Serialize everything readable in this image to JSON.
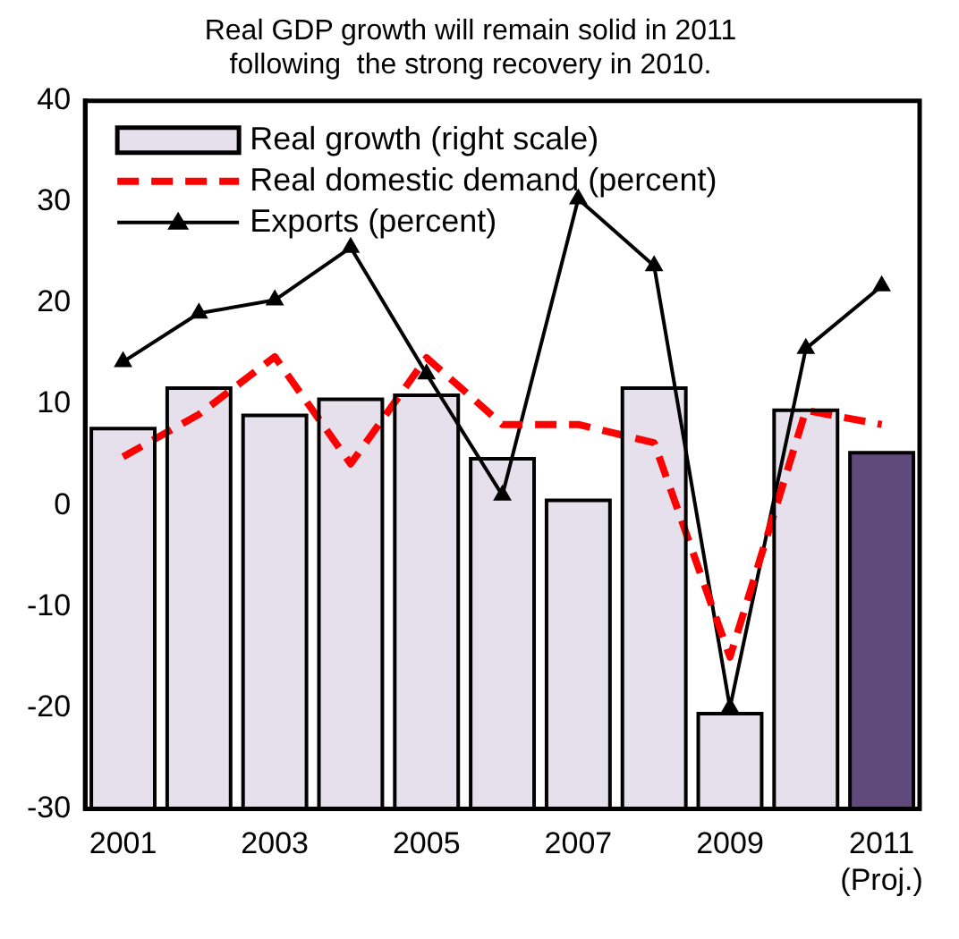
{
  "chart_data": {
    "type": "bar",
    "title": "Real GDP growth will remain solid in 2011\nfollowing  the strong recovery in 2010.",
    "categories": [
      "2001",
      null,
      "2003",
      null,
      "2005",
      null,
      "2007",
      null,
      "2009",
      null,
      "2011\n(Proj.)"
    ],
    "ylim": [
      -30,
      40
    ],
    "yticks": [
      -30,
      -20,
      -10,
      0,
      10,
      20,
      30,
      40
    ],
    "grid": false,
    "legend": "top left",
    "series": [
      {
        "name": "Real growth (right scale)",
        "colors": [
          "#e6e0ec",
          "#e6e0ec",
          "#e6e0ec",
          "#e6e0ec",
          "#e6e0ec",
          "#e6e0ec",
          "#e6e0ec",
          "#e6e0ec",
          "#e6e0ec",
          "#e6e0ec",
          "#604a7b"
        ],
        "base": [
          -30,
          -30,
          -30,
          -30,
          -30,
          -30,
          -30,
          -30,
          -30,
          -30,
          -30
        ],
        "values": [
          37.6,
          41.6,
          38.9,
          40.5,
          40.9,
          34.6,
          30.5,
          41.6,
          9.4,
          39.4,
          35.2
        ]
      },
      {
        "name": "Real domestic demand (percent)",
        "type": "line",
        "color": "#ff0000",
        "line_style": "dashed",
        "marker": "none",
        "values": [
          4.8,
          9,
          14.7,
          4.1,
          14.6,
          8,
          8,
          6.2,
          -15,
          9.4,
          8
        ]
      },
      {
        "name": "Exports (percent)",
        "type": "line",
        "color": "#000000",
        "line_style": "solid",
        "marker": "triangle",
        "values": [
          14.2,
          19,
          20.3,
          25.5,
          13,
          1,
          30.3,
          23.7,
          -20,
          15.5,
          21.7
        ]
      }
    ]
  }
}
